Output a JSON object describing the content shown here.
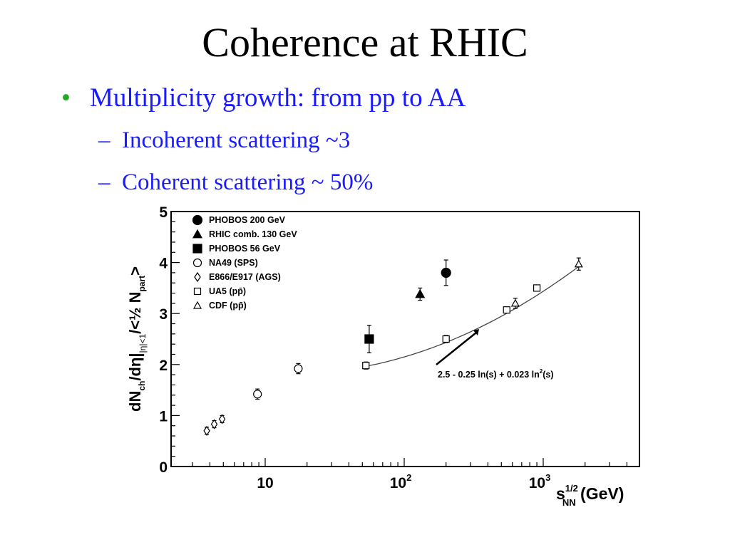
{
  "slide": {
    "title": "Coherence at RHIC",
    "bullet": "Multiplicity growth: from pp to AA",
    "bullet_marker": "•",
    "sub_marker": "–",
    "sub_bullets": [
      "Incoherent scattering ~3",
      "Coherent scattering ~ 50%"
    ],
    "colors": {
      "bullet_text": "#1a1aff",
      "bullet_dot": "#22aa22"
    }
  },
  "chart_data": {
    "type": "scatter",
    "x_scale": "log",
    "xlim": [
      2.1,
      4900
    ],
    "ylim": [
      0,
      5
    ],
    "x_ticks": [
      {
        "base": "10",
        "exp": ""
      },
      {
        "base": "10",
        "exp": "2"
      },
      {
        "base": "10",
        "exp": "3"
      }
    ],
    "y_ticks": [
      "0",
      "1",
      "2",
      "3",
      "4",
      "5"
    ],
    "xlabel": {
      "main": "s",
      "sup": "1/2",
      "sub": "NN",
      "unit": " (GeV)"
    },
    "ylabel": {
      "p1": "dN",
      "s1": "ch",
      "p2": "/d",
      "eta": "η",
      "p3": "|",
      "s2": "|η|<1",
      "p4": "/<",
      "half": "½",
      "p5": " N",
      "s3": "part",
      "p6": ">"
    },
    "legend_position": "top-left",
    "series": [
      {
        "name": "PHOBOS 200 GeV",
        "marker": "circle-filled",
        "points": [
          {
            "x": 200,
            "y": 3.8,
            "err": 0.25
          }
        ]
      },
      {
        "name": "RHIC comb. 130 GeV",
        "marker": "triangle-filled",
        "points": [
          {
            "x": 130,
            "y": 3.38,
            "err": 0.12
          }
        ]
      },
      {
        "name": "PHOBOS 56 GeV",
        "marker": "square-filled",
        "points": [
          {
            "x": 56,
            "y": 2.5,
            "err": 0.27
          }
        ]
      },
      {
        "name": "NA49 (SPS)",
        "marker": "circle-open",
        "points": [
          {
            "x": 8.8,
            "y": 1.42,
            "err": 0.1
          },
          {
            "x": 17.3,
            "y": 1.92,
            "err": 0.1
          }
        ]
      },
      {
        "name": "E866/E917 (AGS)",
        "marker": "diamond-open",
        "points": [
          {
            "x": 3.8,
            "y": 0.7,
            "err": 0.07
          },
          {
            "x": 4.3,
            "y": 0.83,
            "err": 0.07
          },
          {
            "x": 4.9,
            "y": 0.93,
            "err": 0.07
          }
        ]
      },
      {
        "name": "UA5 (pp̄)",
        "marker": "square-open",
        "points": [
          {
            "x": 53,
            "y": 1.98,
            "err": 0.07
          },
          {
            "x": 200,
            "y": 2.5,
            "err": 0.07
          },
          {
            "x": 546,
            "y": 3.07,
            "err": 0.05
          },
          {
            "x": 900,
            "y": 3.5,
            "err": 0.05
          }
        ]
      },
      {
        "name": "CDF (pp̄)",
        "marker": "triangle-open",
        "points": [
          {
            "x": 630,
            "y": 3.2,
            "err": 0.1
          },
          {
            "x": 1800,
            "y": 3.97,
            "err": 0.12
          }
        ]
      }
    ],
    "fit": {
      "label": "2.5 - 0.25 ln(s) + 0.023 ln",
      "label_sup": "2",
      "label_end": "(s)",
      "a": 2.5,
      "b": -0.25,
      "c": 0.023,
      "x_range": [
        53,
        1800
      ]
    }
  }
}
